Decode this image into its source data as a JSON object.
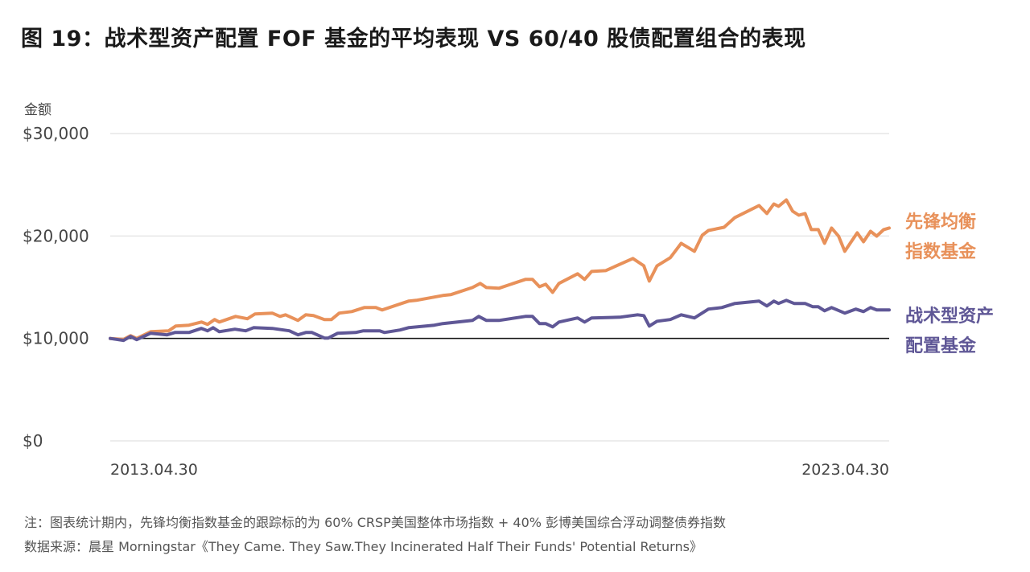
{
  "title": "图 19：战术型资产配置 FOF 基金的平均表现 VS 60/40 股债配置组合的表现",
  "notes": [
    "注：图表统计期内，先锋均衡指数基金的跟踪标的为 60% CRSP美国整体市场指数 + 40% 彭博美国综合浮动调整债券指数",
    "数据来源：晨星 Morningstar《They Came. They Saw.They Incinerated Half Their Funds' Potential Returns》"
  ],
  "chart_data": {
    "type": "line",
    "title": "战术型资产配置 FOF 基金的平均表现 VS 60/40 股债配置组合的表现",
    "xlabel": "",
    "ylabel": "金额",
    "xlim": [
      2013.33,
      2023.33
    ],
    "ylim": [
      0,
      30000
    ],
    "x_tick_labels": [
      {
        "x": 2013.33,
        "label": "2013.04.30"
      },
      {
        "x": 2023.33,
        "label": "2023.04.30"
      }
    ],
    "y_ticks": [
      0,
      10000,
      20000,
      30000
    ],
    "y_tick_labels": [
      "$0",
      "$10,000",
      "$20,000",
      "$30,000"
    ],
    "baseline": 10000,
    "grid": true,
    "legend_placement": "right",
    "series": [
      {
        "name": "先锋均衡指数基金",
        "label_lines": [
          "先锋均衡",
          "指数基金"
        ],
        "color": "#E8915A",
        "points": [
          [
            2013.33,
            10000
          ],
          [
            2013.5,
            9900
          ],
          [
            2013.59,
            10270
          ],
          [
            2013.67,
            10000
          ],
          [
            2013.85,
            10660
          ],
          [
            2014.08,
            10740
          ],
          [
            2014.17,
            11210
          ],
          [
            2014.34,
            11290
          ],
          [
            2014.5,
            11600
          ],
          [
            2014.58,
            11370
          ],
          [
            2014.67,
            11840
          ],
          [
            2014.73,
            11600
          ],
          [
            2014.94,
            12150
          ],
          [
            2015.09,
            11920
          ],
          [
            2015.19,
            12390
          ],
          [
            2015.41,
            12470
          ],
          [
            2015.51,
            12150
          ],
          [
            2015.58,
            12310
          ],
          [
            2015.74,
            11760
          ],
          [
            2015.84,
            12310
          ],
          [
            2015.94,
            12230
          ],
          [
            2016.08,
            11840
          ],
          [
            2016.17,
            11840
          ],
          [
            2016.27,
            12470
          ],
          [
            2016.43,
            12620
          ],
          [
            2016.59,
            13010
          ],
          [
            2016.74,
            13010
          ],
          [
            2016.82,
            12780
          ],
          [
            2017.16,
            13640
          ],
          [
            2017.26,
            13720
          ],
          [
            2017.6,
            14190
          ],
          [
            2017.7,
            14270
          ],
          [
            2017.98,
            14970
          ],
          [
            2018.08,
            15370
          ],
          [
            2018.16,
            14970
          ],
          [
            2018.32,
            14900
          ],
          [
            2018.66,
            15760
          ],
          [
            2018.75,
            15760
          ],
          [
            2018.84,
            15050
          ],
          [
            2018.92,
            15290
          ],
          [
            2019.01,
            14500
          ],
          [
            2019.09,
            15370
          ],
          [
            2019.33,
            16310
          ],
          [
            2019.42,
            15760
          ],
          [
            2019.51,
            16540
          ],
          [
            2019.69,
            16620
          ],
          [
            2020.04,
            17800
          ],
          [
            2020.18,
            17090
          ],
          [
            2020.25,
            15600
          ],
          [
            2020.35,
            17090
          ],
          [
            2020.52,
            17880
          ],
          [
            2020.66,
            19290
          ],
          [
            2020.83,
            18500
          ],
          [
            2020.93,
            20070
          ],
          [
            2021.01,
            20540
          ],
          [
            2021.21,
            20850
          ],
          [
            2021.35,
            21800
          ],
          [
            2021.66,
            22970
          ],
          [
            2021.76,
            22190
          ],
          [
            2021.85,
            23130
          ],
          [
            2021.91,
            22890
          ],
          [
            2022.01,
            23520
          ],
          [
            2022.09,
            22420
          ],
          [
            2022.17,
            22030
          ],
          [
            2022.25,
            22190
          ],
          [
            2022.33,
            20620
          ],
          [
            2022.42,
            20620
          ],
          [
            2022.5,
            19290
          ],
          [
            2022.59,
            20780
          ],
          [
            2022.68,
            19990
          ],
          [
            2022.76,
            18500
          ],
          [
            2022.92,
            20310
          ],
          [
            2023.0,
            19440
          ],
          [
            2023.09,
            20460
          ],
          [
            2023.17,
            19990
          ],
          [
            2023.26,
            20620
          ],
          [
            2023.33,
            20780
          ]
        ]
      },
      {
        "name": "战术型资产配置基金",
        "label_lines": [
          "战术型资产",
          "配置基金"
        ],
        "color": "#5F5796",
        "points": [
          [
            2013.33,
            10000
          ],
          [
            2013.5,
            9800
          ],
          [
            2013.59,
            10190
          ],
          [
            2013.67,
            9880
          ],
          [
            2013.85,
            10510
          ],
          [
            2014.06,
            10350
          ],
          [
            2014.16,
            10580
          ],
          [
            2014.34,
            10580
          ],
          [
            2014.5,
            10980
          ],
          [
            2014.58,
            10740
          ],
          [
            2014.65,
            11050
          ],
          [
            2014.73,
            10660
          ],
          [
            2014.93,
            10900
          ],
          [
            2015.07,
            10740
          ],
          [
            2015.17,
            11050
          ],
          [
            2015.41,
            10980
          ],
          [
            2015.63,
            10740
          ],
          [
            2015.74,
            10350
          ],
          [
            2015.84,
            10580
          ],
          [
            2015.92,
            10580
          ],
          [
            2016.08,
            10040
          ],
          [
            2016.13,
            10040
          ],
          [
            2016.25,
            10510
          ],
          [
            2016.48,
            10580
          ],
          [
            2016.58,
            10740
          ],
          [
            2016.79,
            10740
          ],
          [
            2016.85,
            10580
          ],
          [
            2017.05,
            10820
          ],
          [
            2017.16,
            11050
          ],
          [
            2017.49,
            11290
          ],
          [
            2017.6,
            11450
          ],
          [
            2017.98,
            11760
          ],
          [
            2018.06,
            12150
          ],
          [
            2018.16,
            11760
          ],
          [
            2018.32,
            11760
          ],
          [
            2018.66,
            12150
          ],
          [
            2018.75,
            12150
          ],
          [
            2018.84,
            11450
          ],
          [
            2018.92,
            11450
          ],
          [
            2019.01,
            11130
          ],
          [
            2019.09,
            11600
          ],
          [
            2019.33,
            12000
          ],
          [
            2019.42,
            11600
          ],
          [
            2019.51,
            12000
          ],
          [
            2019.87,
            12070
          ],
          [
            2020.1,
            12310
          ],
          [
            2020.18,
            12230
          ],
          [
            2020.25,
            11210
          ],
          [
            2020.35,
            11680
          ],
          [
            2020.52,
            11840
          ],
          [
            2020.66,
            12310
          ],
          [
            2020.83,
            12000
          ],
          [
            2021.01,
            12860
          ],
          [
            2021.18,
            13010
          ],
          [
            2021.35,
            13410
          ],
          [
            2021.66,
            13640
          ],
          [
            2021.76,
            13170
          ],
          [
            2021.85,
            13640
          ],
          [
            2021.91,
            13410
          ],
          [
            2022.01,
            13720
          ],
          [
            2022.11,
            13410
          ],
          [
            2022.25,
            13410
          ],
          [
            2022.35,
            13090
          ],
          [
            2022.42,
            13090
          ],
          [
            2022.5,
            12700
          ],
          [
            2022.59,
            13010
          ],
          [
            2022.76,
            12470
          ],
          [
            2022.9,
            12860
          ],
          [
            2023.0,
            12620
          ],
          [
            2023.09,
            13010
          ],
          [
            2023.17,
            12780
          ],
          [
            2023.33,
            12780
          ]
        ]
      }
    ]
  }
}
